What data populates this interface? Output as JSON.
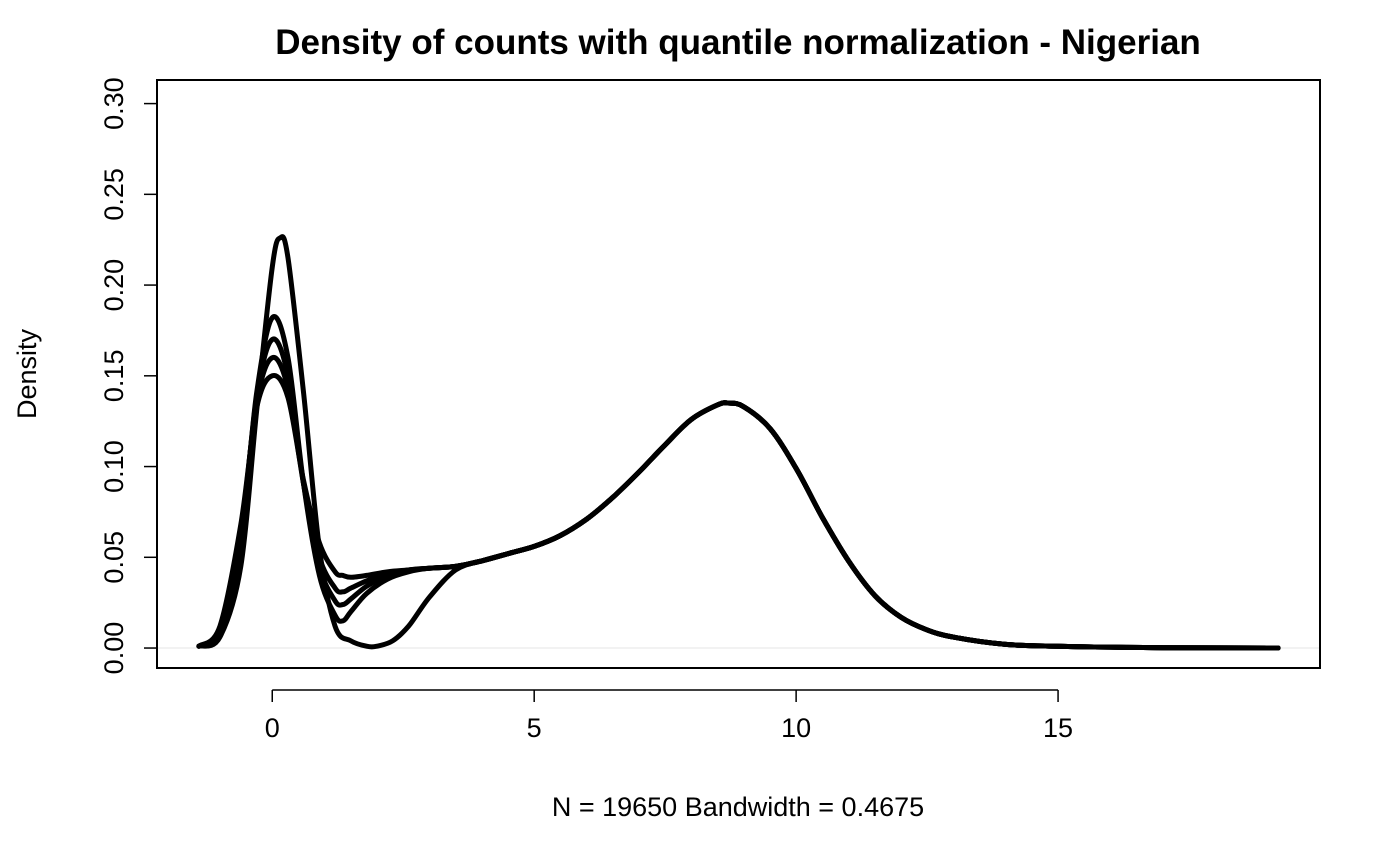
{
  "chart_data": {
    "type": "line",
    "title": "Density of counts with quantile normalization - Nigerian",
    "xlabel": "N = 19650   Bandwidth = 0.4675",
    "ylabel": "Density",
    "xlim": [
      -2.2,
      20.0
    ],
    "ylim": [
      -0.011,
      0.313
    ],
    "x_ticks": [
      0,
      5,
      10,
      15
    ],
    "y_ticks": [
      0.0,
      0.05,
      0.1,
      0.15,
      0.2,
      0.25,
      0.3
    ],
    "x_tick_labels": [
      "0",
      "5",
      "10",
      "15"
    ],
    "y_tick_labels": [
      "0.00",
      "0.05",
      "0.10",
      "0.15",
      "0.20",
      "0.25",
      "0.30"
    ],
    "grid": false,
    "legend": "none",
    "line_color": "#000000",
    "baseline": 0,
    "baseline_color": "#eeeeee",
    "series": [
      {
        "x": [
          -1.4,
          -1.0,
          -0.6,
          -0.3,
          0.0,
          0.15,
          0.3,
          0.6,
          0.9,
          1.2,
          1.5,
          1.8,
          2.0,
          2.3,
          2.6,
          3.0,
          3.5,
          4.0,
          4.5,
          5.0,
          5.5,
          6.0,
          6.5,
          7.0,
          7.5,
          8.0,
          8.5,
          8.7,
          9.0,
          9.5,
          10.0,
          10.5,
          11.0,
          11.5,
          12.0,
          12.5,
          13.0,
          14.0,
          15.0,
          16.0,
          17.0,
          19.2
        ],
        "values": [
          0.001,
          0.006,
          0.045,
          0.13,
          0.21,
          0.226,
          0.215,
          0.14,
          0.055,
          0.012,
          0.004,
          0.001,
          0.001,
          0.004,
          0.012,
          0.028,
          0.043,
          0.048,
          0.052,
          0.056,
          0.062,
          0.071,
          0.083,
          0.097,
          0.112,
          0.126,
          0.134,
          0.135,
          0.133,
          0.121,
          0.099,
          0.072,
          0.048,
          0.029,
          0.017,
          0.01,
          0.006,
          0.002,
          0.001,
          0.0005,
          0.0002,
          0.0
        ]
      },
      {
        "x": [
          -1.4,
          -1.0,
          -0.6,
          -0.3,
          0.0,
          0.3,
          0.6,
          0.9,
          1.2,
          1.35,
          1.5,
          1.8,
          2.2,
          2.6,
          3.0,
          3.5,
          4.0,
          4.5,
          5.0,
          5.5,
          6.0,
          6.5,
          7.0,
          7.5,
          8.0,
          8.5,
          8.7,
          9.0,
          9.5,
          10.0,
          10.5,
          11.0,
          11.5,
          12.0,
          12.5,
          13.0,
          14.0,
          15.0,
          16.0,
          17.0,
          19.2
        ],
        "values": [
          0.001,
          0.008,
          0.06,
          0.14,
          0.182,
          0.16,
          0.09,
          0.04,
          0.018,
          0.015,
          0.02,
          0.03,
          0.038,
          0.042,
          0.044,
          0.045,
          0.048,
          0.052,
          0.056,
          0.062,
          0.071,
          0.083,
          0.097,
          0.112,
          0.126,
          0.134,
          0.135,
          0.133,
          0.121,
          0.099,
          0.072,
          0.048,
          0.029,
          0.017,
          0.01,
          0.006,
          0.002,
          0.001,
          0.0005,
          0.0002,
          0.0
        ]
      },
      {
        "x": [
          -1.4,
          -1.0,
          -0.6,
          -0.3,
          0.0,
          0.3,
          0.6,
          0.9,
          1.2,
          1.35,
          1.5,
          1.8,
          2.2,
          2.6,
          3.0,
          3.5,
          4.0,
          4.5,
          5.0,
          5.5,
          6.0,
          6.5,
          7.0,
          7.5,
          8.0,
          8.5,
          8.7,
          9.0,
          9.5,
          10.0,
          10.5,
          11.0,
          11.5,
          12.0,
          12.5,
          13.0,
          14.0,
          15.0,
          16.0,
          17.0,
          19.2
        ],
        "values": [
          0.001,
          0.009,
          0.062,
          0.138,
          0.17,
          0.15,
          0.09,
          0.045,
          0.026,
          0.024,
          0.027,
          0.034,
          0.04,
          0.043,
          0.044,
          0.045,
          0.048,
          0.052,
          0.056,
          0.062,
          0.071,
          0.083,
          0.097,
          0.112,
          0.126,
          0.134,
          0.135,
          0.133,
          0.121,
          0.099,
          0.072,
          0.048,
          0.029,
          0.017,
          0.01,
          0.006,
          0.002,
          0.001,
          0.0005,
          0.0002,
          0.0
        ]
      },
      {
        "x": [
          -1.4,
          -1.0,
          -0.6,
          -0.3,
          0.0,
          0.3,
          0.6,
          0.9,
          1.2,
          1.35,
          1.5,
          1.8,
          2.2,
          2.6,
          3.0,
          3.5,
          4.0,
          4.5,
          5.0,
          5.5,
          6.0,
          6.5,
          7.0,
          7.5,
          8.0,
          8.5,
          8.7,
          9.0,
          9.5,
          10.0,
          10.5,
          11.0,
          11.5,
          12.0,
          12.5,
          13.0,
          14.0,
          15.0,
          16.0,
          17.0,
          19.2
        ],
        "values": [
          0.001,
          0.01,
          0.065,
          0.135,
          0.16,
          0.143,
          0.09,
          0.05,
          0.033,
          0.031,
          0.033,
          0.037,
          0.041,
          0.043,
          0.044,
          0.045,
          0.048,
          0.052,
          0.056,
          0.062,
          0.071,
          0.083,
          0.097,
          0.112,
          0.126,
          0.134,
          0.135,
          0.133,
          0.121,
          0.099,
          0.072,
          0.048,
          0.029,
          0.017,
          0.01,
          0.006,
          0.002,
          0.001,
          0.0005,
          0.0002,
          0.0
        ]
      },
      {
        "x": [
          -1.4,
          -1.0,
          -0.6,
          -0.3,
          0.0,
          0.3,
          0.6,
          0.9,
          1.2,
          1.35,
          1.5,
          1.8,
          2.2,
          2.6,
          3.0,
          3.5,
          4.0,
          4.5,
          5.0,
          5.5,
          6.0,
          6.5,
          7.0,
          7.5,
          8.0,
          8.5,
          8.7,
          9.0,
          9.5,
          10.0,
          10.5,
          11.0,
          11.5,
          12.0,
          12.5,
          13.0,
          14.0,
          15.0,
          16.0,
          17.0,
          19.2
        ],
        "values": [
          0.001,
          0.012,
          0.068,
          0.132,
          0.15,
          0.138,
          0.092,
          0.058,
          0.042,
          0.04,
          0.039,
          0.04,
          0.042,
          0.043,
          0.044,
          0.045,
          0.048,
          0.052,
          0.056,
          0.062,
          0.071,
          0.083,
          0.097,
          0.112,
          0.126,
          0.134,
          0.135,
          0.133,
          0.121,
          0.099,
          0.072,
          0.048,
          0.029,
          0.017,
          0.01,
          0.006,
          0.002,
          0.001,
          0.0005,
          0.0002,
          0.0
        ]
      }
    ]
  }
}
